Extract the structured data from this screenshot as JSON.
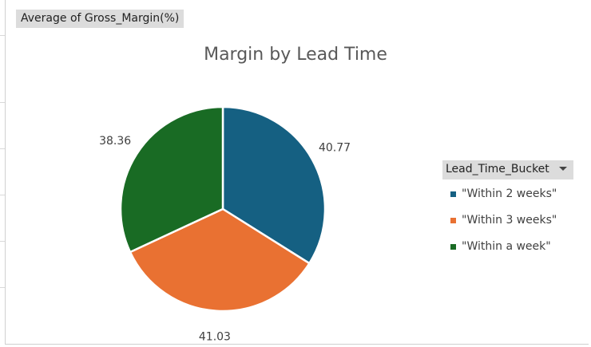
{
  "field_button": "Average of Gross_Margin(%)",
  "legend_field": "Lead_Time_Bucket",
  "chart_data": {
    "type": "pie",
    "title": "Margin by Lead Time",
    "categories": [
      "\"Within 2 weeks\"",
      "\"Within 3 weeks\"",
      "\"Within a week\""
    ],
    "values": [
      40.77,
      41.03,
      38.36
    ],
    "labels": [
      "40.77",
      "41.03",
      "38.36"
    ],
    "colors": [
      "#156082",
      "#e97132",
      "#196b24"
    ],
    "legend_position": "right"
  }
}
